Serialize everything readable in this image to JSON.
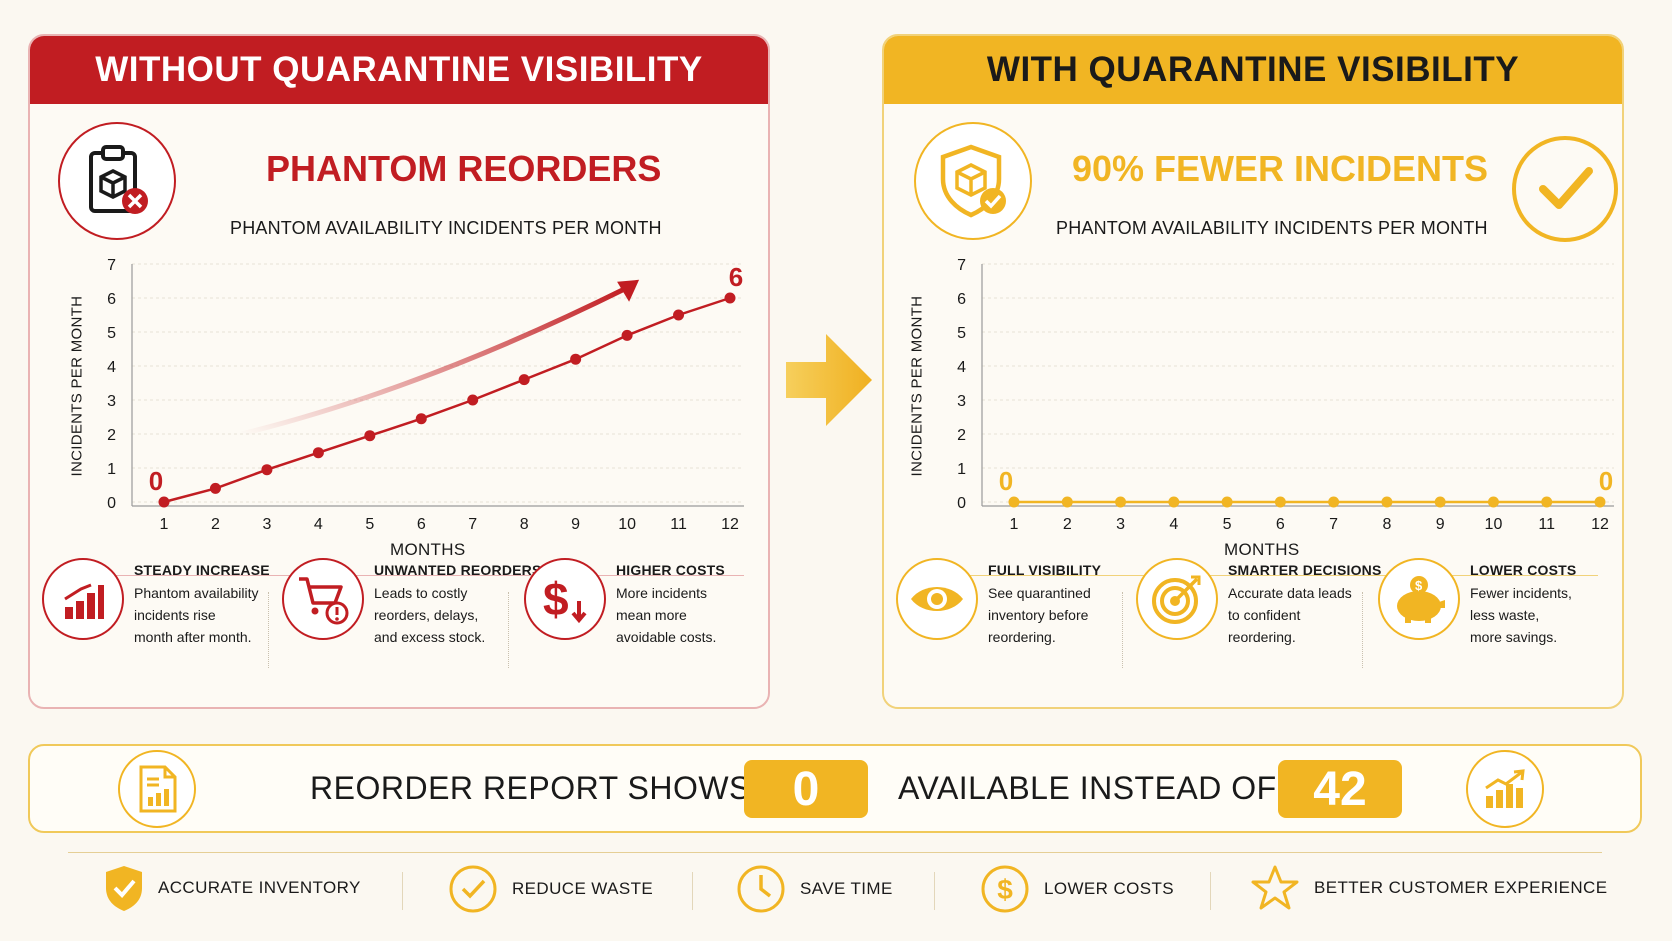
{
  "colors": {
    "red": "#c11d22",
    "gold": "#f1b523",
    "dark": "#1a1a1a"
  },
  "left": {
    "header": "WITHOUT QUARANTINE VISIBILITY",
    "title": "PHANTOM REORDERS",
    "icon": "clipboard-box-x-icon",
    "benefits": [
      {
        "icon": "bar-chart-up-icon",
        "title": "STEADY INCREASE",
        "lines": [
          "Phantom availability",
          "incidents rise",
          "month after month."
        ]
      },
      {
        "icon": "cart-alert-icon",
        "title": "UNWANTED REORDERS",
        "lines": [
          "Leads to costly",
          "reorders, delays,",
          "and excess stock."
        ]
      },
      {
        "icon": "dollar-down-icon",
        "title": "HIGHER COSTS",
        "lines": [
          "More incidents",
          "mean more",
          "avoidable costs."
        ]
      }
    ]
  },
  "right": {
    "header": "WITH QUARANTINE VISIBILITY",
    "title": "90% FEWER INCIDENTS",
    "icon": "shield-box-check-icon",
    "check_icon": "checkmark-circle-icon",
    "benefits": [
      {
        "icon": "eye-icon",
        "title": "FULL VISIBILITY",
        "lines": [
          "See quarantined",
          "inventory before",
          "reordering."
        ]
      },
      {
        "icon": "target-icon",
        "title": "SMARTER DECISIONS",
        "lines": [
          "Accurate data leads",
          "to confident",
          "reordering."
        ]
      },
      {
        "icon": "piggy-bank-icon",
        "title": "LOWER COSTS",
        "lines": [
          "Fewer incidents,",
          "less waste,",
          "more savings."
        ]
      }
    ]
  },
  "report": {
    "text1": "REORDER REPORT SHOWS",
    "value1": "0",
    "text2": "AVAILABLE INSTEAD OF",
    "value2": "42",
    "left_icon": "report-document-icon",
    "right_icon": "growth-chart-icon"
  },
  "features": [
    {
      "icon": "shield-check-icon",
      "label": "ACCURATE INVENTORY"
    },
    {
      "icon": "check-circle-icon",
      "label": "REDUCE WASTE"
    },
    {
      "icon": "clock-icon",
      "label": "SAVE TIME"
    },
    {
      "icon": "dollar-circle-icon",
      "label": "LOWER COSTS"
    },
    {
      "icon": "star-icon",
      "label": "BETTER CUSTOMER EXPERIENCE"
    }
  ],
  "chart_data": [
    {
      "type": "line",
      "title": "PHANTOM AVAILABILITY INCIDENTS PER MONTH",
      "xlabel": "MONTHS",
      "ylabel": "INCIDENTS PER MONTH",
      "x": [
        1,
        2,
        3,
        4,
        5,
        6,
        7,
        8,
        9,
        10,
        11,
        12
      ],
      "series": [
        {
          "values": [
            0,
            0.4,
            0.95,
            1.45,
            1.95,
            2.45,
            3.0,
            3.6,
            4.2,
            4.9,
            5.5,
            6.0
          ]
        }
      ],
      "ylim": [
        0,
        7
      ],
      "yticks": [
        0,
        1,
        2,
        3,
        4,
        5,
        6,
        7
      ],
      "annotations": {
        "start": "0",
        "end": "6"
      },
      "grid": true,
      "color": "#c11d22"
    },
    {
      "type": "line",
      "title": "PHANTOM AVAILABILITY INCIDENTS PER MONTH",
      "xlabel": "MONTHS",
      "ylabel": "INCIDENTS PER MONTH",
      "x": [
        1,
        2,
        3,
        4,
        5,
        6,
        7,
        8,
        9,
        10,
        11,
        12
      ],
      "series": [
        {
          "values": [
            0,
            0,
            0,
            0,
            0,
            0,
            0,
            0,
            0,
            0,
            0,
            0
          ]
        }
      ],
      "ylim": [
        0,
        7
      ],
      "yticks": [
        0,
        1,
        2,
        3,
        4,
        5,
        6,
        7
      ],
      "annotations": {
        "start": "0",
        "end": "0"
      },
      "grid": true,
      "color": "#f1b523"
    }
  ]
}
